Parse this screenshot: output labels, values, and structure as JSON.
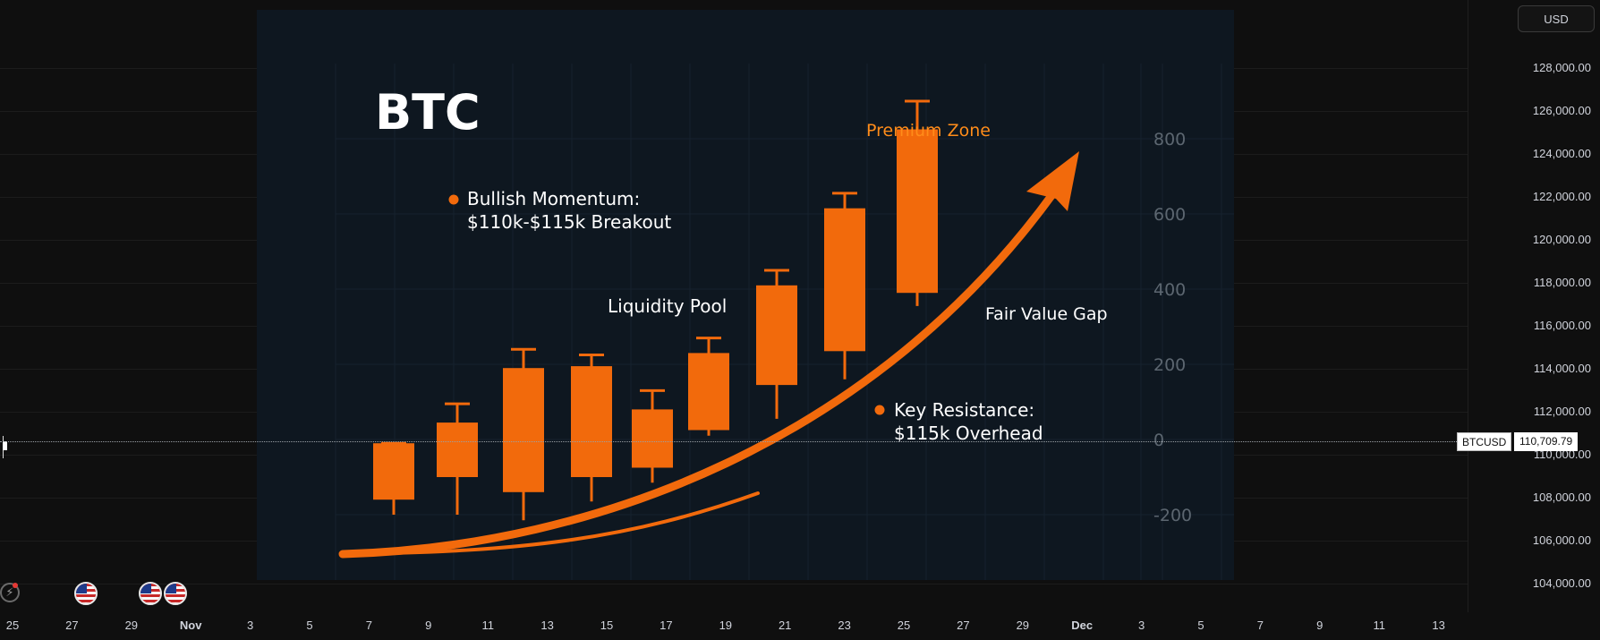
{
  "price_scale": {
    "currency_label": "USD",
    "labels": [
      "128,000.00",
      "126,000.00",
      "124,000.00",
      "122,000.00",
      "120,000.00",
      "118,000.00",
      "116,000.00",
      "114,000.00",
      "112,000.00",
      "110,000.00",
      "108,000.00",
      "106,000.00",
      "104,000.00"
    ]
  },
  "time_axis": {
    "labels": [
      {
        "text": "25",
        "month": false
      },
      {
        "text": "27",
        "month": false
      },
      {
        "text": "29",
        "month": false
      },
      {
        "text": "Nov",
        "month": true
      },
      {
        "text": "3",
        "month": false
      },
      {
        "text": "5",
        "month": false
      },
      {
        "text": "7",
        "month": false
      },
      {
        "text": "9",
        "month": false
      },
      {
        "text": "11",
        "month": false
      },
      {
        "text": "13",
        "month": false
      },
      {
        "text": "15",
        "month": false
      },
      {
        "text": "17",
        "month": false
      },
      {
        "text": "19",
        "month": false
      },
      {
        "text": "21",
        "month": false
      },
      {
        "text": "23",
        "month": false
      },
      {
        "text": "25",
        "month": false
      },
      {
        "text": "27",
        "month": false
      },
      {
        "text": "29",
        "month": false
      },
      {
        "text": "Dec",
        "month": true
      },
      {
        "text": "3",
        "month": false
      },
      {
        "text": "5",
        "month": false
      },
      {
        "text": "7",
        "month": false
      },
      {
        "text": "9",
        "month": false
      },
      {
        "text": "11",
        "month": false
      },
      {
        "text": "13",
        "month": false
      }
    ]
  },
  "crosshair": {
    "symbol": "BTCUSD",
    "price": "110,709.79"
  },
  "overlay": {
    "title": "BTC",
    "labels": {
      "premium_zone": "Premium Zone",
      "bullish_line1": "Bullish Momentum:",
      "bullish_line2": "$110k-$115k Breakout",
      "liquidity_pool": "Liquidity Pool",
      "fair_value_gap": "Fair Value Gap",
      "key_res_line1": "Key Resistance:",
      "key_res_line2": "$115k Overhead"
    },
    "axis_labels": [
      "800",
      "600",
      "400",
      "200",
      "0",
      "-200"
    ],
    "accent_color": "#f26a0c",
    "text_color": "#ffffff",
    "premium_color": "#ff8c1a",
    "background": "#0e1720"
  },
  "chart_data": {
    "type": "candlestick",
    "title": "BTC",
    "ylabel": "",
    "ylim": [
      -300,
      900
    ],
    "candles": [
      {
        "open": -160,
        "close": -10,
        "high": -10,
        "low": -200
      },
      {
        "open": -100,
        "close": 45,
        "high": 95,
        "low": -200
      },
      {
        "open": -140,
        "close": 190,
        "high": 240,
        "low": -215
      },
      {
        "open": -100,
        "close": 195,
        "high": 225,
        "low": -165
      },
      {
        "open": -75,
        "close": 80,
        "high": 130,
        "low": -115
      },
      {
        "open": 25,
        "close": 230,
        "high": 270,
        "low": 10
      },
      {
        "open": 145,
        "close": 410,
        "high": 450,
        "low": 55
      },
      {
        "open": 235,
        "close": 615,
        "high": 655,
        "low": 160
      },
      {
        "open": 390,
        "close": 825,
        "high": 900,
        "low": 355
      }
    ],
    "trend_arrow": {
      "from": [
        -0.5,
        -320
      ],
      "to": [
        11.5,
        790
      ]
    },
    "grid": true
  },
  "events": {
    "icons": [
      "flash-icon",
      "us-flag-icon",
      "us-flag-icon",
      "us-flag-icon"
    ]
  }
}
